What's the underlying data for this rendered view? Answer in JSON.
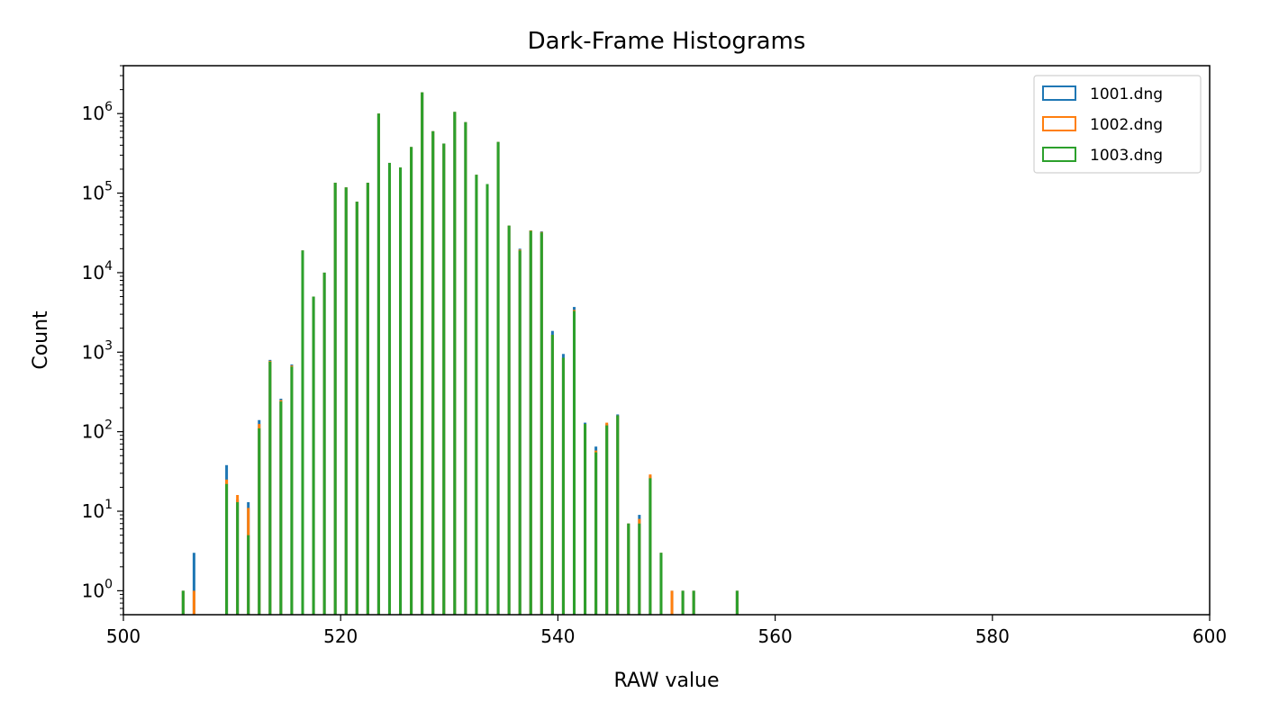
{
  "chart_data": {
    "type": "bar",
    "title": "Dark-Frame Histograms",
    "xlabel": "RAW value",
    "ylabel": "Count",
    "xlim": [
      500,
      600
    ],
    "ylim": [
      0.5,
      4000000
    ],
    "yscale": "log",
    "grid": false,
    "legend_position": "top-right",
    "x_ticks": [
      500,
      520,
      540,
      560,
      580,
      600
    ],
    "y_ticks": [
      {
        "value": 1,
        "base": "10",
        "exp": "0"
      },
      {
        "value": 10,
        "base": "10",
        "exp": "1"
      },
      {
        "value": 100,
        "base": "10",
        "exp": "2"
      },
      {
        "value": 1000,
        "base": "10",
        "exp": "3"
      },
      {
        "value": 10000,
        "base": "10",
        "exp": "4"
      },
      {
        "value": 100000,
        "base": "10",
        "exp": "5"
      },
      {
        "value": 1000000,
        "base": "10",
        "exp": "6"
      }
    ],
    "x": [
      505,
      506,
      509,
      510,
      511,
      512,
      513,
      514,
      515,
      516,
      517,
      518,
      519,
      520,
      521,
      522,
      523,
      524,
      525,
      526,
      527,
      528,
      529,
      530,
      531,
      532,
      533,
      534,
      535,
      536,
      537,
      538,
      539,
      540,
      541,
      542,
      543,
      544,
      545,
      546,
      547,
      548,
      549,
      550,
      551,
      552,
      556
    ],
    "series": [
      {
        "name": "1001.dng",
        "color": "#1f77b4",
        "values": [
          1,
          3,
          38,
          14,
          13,
          140,
          800,
          260,
          700,
          19000,
          5000,
          10000,
          135000,
          118000,
          78000,
          135000,
          1000000,
          240000,
          210000,
          380000,
          1850000,
          600000,
          420000,
          1050000,
          780000,
          170000,
          130000,
          440000,
          39000,
          20000,
          34000,
          33000,
          1850,
          950,
          3700,
          130,
          65,
          125,
          165,
          7,
          9,
          28,
          3,
          1,
          1,
          1,
          1
        ]
      },
      {
        "name": "1002.dng",
        "color": "#ff7f0e",
        "values": [
          1,
          1,
          25,
          16,
          11,
          125,
          780,
          250,
          680,
          19000,
          5000,
          10000,
          135000,
          118000,
          78000,
          135000,
          1000000,
          240000,
          210000,
          380000,
          1850000,
          600000,
          420000,
          1050000,
          780000,
          170000,
          130000,
          440000,
          39000,
          19500,
          34000,
          32500,
          1650,
          850,
          3400,
          125,
          58,
          130,
          160,
          7,
          8,
          29,
          3,
          1,
          1,
          1,
          1
        ]
      },
      {
        "name": "1003.dng",
        "color": "#2ca02c",
        "values": [
          1,
          0,
          22,
          13,
          5,
          110,
          760,
          240,
          660,
          19000,
          5000,
          10000,
          135000,
          118000,
          78000,
          135000,
          1000000,
          240000,
          210000,
          380000,
          1850000,
          600000,
          420000,
          1050000,
          780000,
          170000,
          130000,
          440000,
          39000,
          19000,
          33500,
          32000,
          1650,
          850,
          3300,
          125,
          55,
          120,
          160,
          7,
          7,
          26,
          3,
          0,
          1,
          1,
          1
        ]
      }
    ]
  }
}
